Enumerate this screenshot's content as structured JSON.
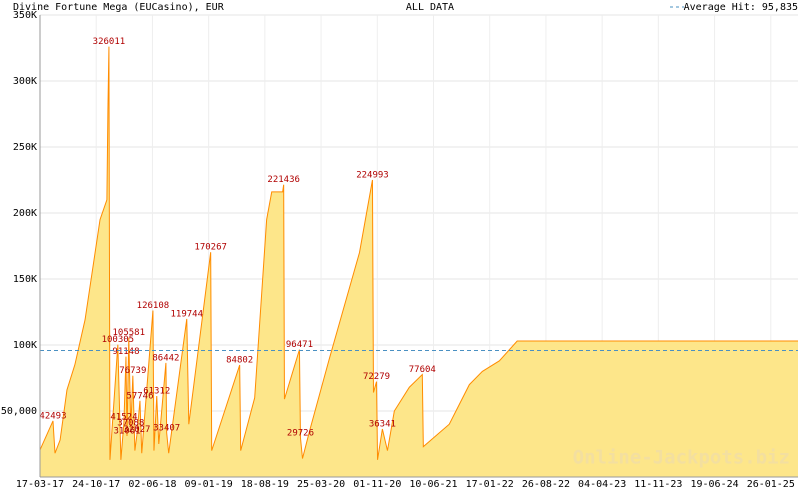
{
  "chart_data": {
    "type": "area",
    "title": "Divine Fortune Mega (EUCasino), EUR",
    "subtitle": "ALL DATA",
    "legend_label": "Average Hit: 95,835",
    "average_hit": 95835,
    "watermark": "Online-Jackpots.biz",
    "fill_color": "#fde68a",
    "line_color": "#ff8c00",
    "average_color": "#4a90c2",
    "label_color": "#b00000",
    "grid": true,
    "xlim": [
      0,
      2980
    ],
    "ylim": [
      0,
      350000
    ],
    "xticks": [
      {
        "value": 0,
        "label": "17-03-17"
      },
      {
        "value": 221,
        "label": "24-10-17"
      },
      {
        "value": 442,
        "label": "02-06-18"
      },
      {
        "value": 663,
        "label": "09-01-19"
      },
      {
        "value": 884,
        "label": "18-08-19"
      },
      {
        "value": 1105,
        "label": "25-03-20"
      },
      {
        "value": 1326,
        "label": "01-11-20"
      },
      {
        "value": 1547,
        "label": "10-06-21"
      },
      {
        "value": 1768,
        "label": "17-01-22"
      },
      {
        "value": 1989,
        "label": "26-08-22"
      },
      {
        "value": 2210,
        "label": "04-04-23"
      },
      {
        "value": 2431,
        "label": "11-11-23"
      },
      {
        "value": 2652,
        "label": "19-06-24"
      },
      {
        "value": 2873,
        "label": "26-01-25"
      }
    ],
    "yticks": [
      {
        "value": 50000,
        "label": "50,000"
      },
      {
        "value": 100000,
        "label": "100K"
      },
      {
        "value": 150000,
        "label": "150K"
      },
      {
        "value": 200000,
        "label": "200K"
      },
      {
        "value": 250000,
        "label": "250K"
      },
      {
        "value": 300000,
        "label": "300K"
      },
      {
        "value": 350000,
        "label": "350K"
      }
    ],
    "x": [
      0,
      51,
      59,
      79,
      106,
      137,
      177,
      236,
      263,
      267,
      271,
      275,
      306,
      318,
      330,
      338,
      342,
      349,
      357,
      365,
      373,
      381,
      393,
      400,
      444,
      448,
      459,
      467,
      495,
      498,
      506,
      577,
      585,
      671,
      675,
      785,
      789,
      844,
      891,
      911,
      954,
      958,
      961,
      1020,
      1024,
      1032,
      1060,
      1138,
      1197,
      1256,
      1307,
      1311,
      1323,
      1327,
      1346,
      1366,
      1393,
      1452,
      1503,
      1507,
      1609,
      1688,
      1739,
      1806,
      1876,
      2980
    ],
    "values": [
      20500,
      42493,
      18000,
      28000,
      66000,
      85000,
      119000,
      195000,
      210000,
      278000,
      326011,
      13000,
      100305,
      13000,
      41524,
      91148,
      31061,
      105581,
      37088,
      76739,
      20000,
      32027,
      57746,
      18000,
      126108,
      20000,
      61312,
      25000,
      86442,
      33407,
      18000,
      119744,
      40000,
      170267,
      20000,
      84802,
      20000,
      60000,
      195000,
      216000,
      216000,
      221436,
      59000,
      96471,
      29726,
      14000,
      35000,
      90000,
      130000,
      170000,
      224993,
      64000,
      72279,
      13000,
      36341,
      20000,
      50000,
      68000,
      77604,
      23000,
      40000,
      70000,
      80000,
      88000,
      103000,
      103000
    ],
    "value_labels": [
      null,
      "42493",
      null,
      null,
      null,
      null,
      null,
      null,
      null,
      null,
      "326011",
      null,
      "100305",
      null,
      "41524",
      "91148",
      "31061",
      "105581",
      "37088",
      "76739",
      null,
      "32027",
      "57746",
      null,
      "126108",
      null,
      "61312",
      null,
      "86442",
      "33407",
      null,
      "119744",
      null,
      "170267",
      null,
      "84802",
      null,
      null,
      null,
      null,
      null,
      "221436",
      null,
      "96471",
      "29726",
      null,
      null,
      null,
      null,
      null,
      "224993",
      null,
      "72279",
      null,
      "36341",
      null,
      null,
      null,
      "77604",
      null,
      null,
      null,
      null,
      null,
      null,
      null
    ]
  }
}
